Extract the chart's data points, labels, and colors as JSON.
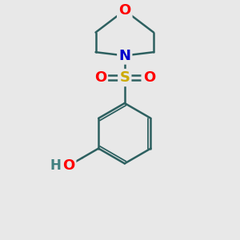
{
  "bg_color": "#e8e8e8",
  "bond_color": "#2d6060",
  "bond_width": 1.8,
  "atom_colors": {
    "O": "#ff0000",
    "N": "#0000cc",
    "S": "#ccaa00",
    "H": "#408080"
  },
  "font_size_atoms": 13,
  "font_size_small": 11
}
